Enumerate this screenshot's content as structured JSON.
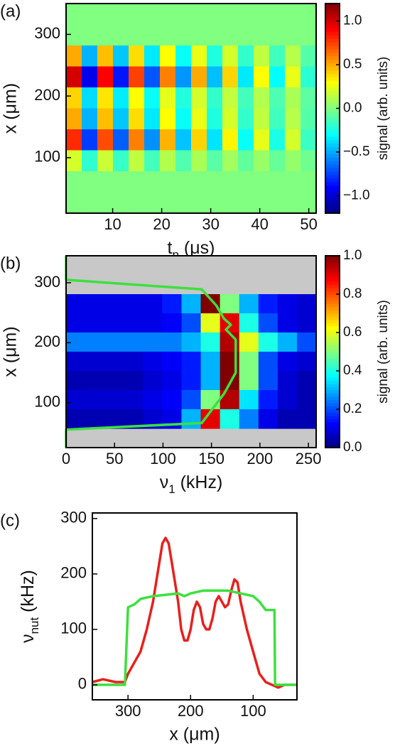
{
  "chart_data": [
    {
      "type": "heatmap",
      "panel_label": "(a)",
      "xlabel": [
        "t",
        "p",
        " (μs)"
      ],
      "ylabel": "x (μm)",
      "xlim": [
        0.5,
        51.5
      ],
      "xticks": [
        10,
        20,
        30,
        40,
        50
      ],
      "ylim": [
        10,
        350
      ],
      "yticks": [
        100,
        200,
        300
      ],
      "colormap": "jet",
      "clim": [
        -1.2,
        1.2
      ],
      "cticks": [
        {
          "value": -1,
          "label": "−1.0"
        },
        {
          "value": -0.5,
          "label": "−0.5"
        },
        {
          "value": 0,
          "label": "0.0"
        },
        {
          "value": 0.5,
          "label": "0.5"
        },
        {
          "value": 1,
          "label": "1.0"
        }
      ],
      "colorbar_label": "signal (arb. units)",
      "z": [
        [
          0,
          0,
          0,
          0,
          0,
          0,
          0,
          0,
          0,
          0,
          0,
          0,
          0,
          0,
          0,
          0
        ],
        [
          0,
          0,
          0,
          0,
          0,
          0,
          0,
          0,
          0,
          0,
          0,
          0,
          0,
          0,
          0,
          0
        ],
        [
          0.5,
          -0.48,
          0.45,
          -0.43,
          0.38,
          -0.35,
          0.3,
          -0.28,
          0.25,
          -0.23,
          0.2,
          -0.18,
          0.15,
          -0.15,
          0.13,
          -0.1
        ],
        [
          1,
          -0.95,
          0.9,
          -0.85,
          0.75,
          -0.7,
          0.6,
          -0.55,
          0.5,
          -0.45,
          0.4,
          -0.35,
          0.3,
          -0.3,
          0.25,
          -0.2
        ],
        [
          0.4,
          -0.38,
          0.36,
          -0.34,
          0.3,
          -0.28,
          0.24,
          -0.22,
          0.2,
          -0.18,
          0.16,
          -0.14,
          0.12,
          -0.12,
          0.1,
          -0.08
        ],
        [
          0.5,
          -0.48,
          0.45,
          -0.43,
          0.38,
          -0.35,
          0.3,
          -0.28,
          0.25,
          -0.23,
          0.2,
          -0.18,
          0.15,
          -0.15,
          0.13,
          -0.1
        ],
        [
          0.8,
          -0.76,
          0.72,
          -0.68,
          0.6,
          -0.56,
          0.48,
          -0.44,
          0.4,
          -0.36,
          0.32,
          -0.28,
          0.24,
          -0.24,
          0.2,
          -0.16
        ],
        [
          0.2,
          -0.19,
          0.18,
          -0.17,
          0.15,
          -0.14,
          0.12,
          -0.11,
          0.1,
          -0.09,
          0.08,
          -0.07,
          0.06,
          -0.06,
          0.05,
          -0.04
        ],
        [
          0,
          0,
          0,
          0,
          0,
          0,
          0,
          0,
          0,
          0,
          0,
          0,
          0,
          0,
          0,
          0
        ],
        [
          0,
          0,
          0,
          0,
          0,
          0,
          0,
          0,
          0,
          0,
          0,
          0,
          0,
          0,
          0,
          0
        ]
      ]
    },
    {
      "type": "heatmap",
      "panel_label": "(b)",
      "xlabel": [
        "ν",
        "1",
        " (kHz)"
      ],
      "ylabel": "x (μm)",
      "xlim": [
        0,
        258
      ],
      "xticks": [
        0,
        50,
        100,
        150,
        200,
        250
      ],
      "ylim": [
        25,
        345
      ],
      "yticks": [
        100,
        200,
        300
      ],
      "colormap": "jet",
      "clim": [
        0,
        1
      ],
      "nan_color": "#c8c8c8",
      "cticks": [
        {
          "value": 0,
          "label": "0.0"
        },
        {
          "value": 0.2,
          "label": "0.2"
        },
        {
          "value": 0.4,
          "label": "0.4"
        },
        {
          "value": 0.6,
          "label": "0.6"
        },
        {
          "value": 0.8,
          "label": "0.8"
        },
        {
          "value": 1,
          "label": "1.0"
        }
      ],
      "colorbar_label": "signal (arb. units)",
      "z": [
        [
          null,
          null,
          null,
          null,
          null,
          null,
          null,
          null,
          null,
          null,
          null,
          null,
          null
        ],
        [
          null,
          null,
          null,
          null,
          null,
          null,
          null,
          null,
          null,
          null,
          null,
          null,
          null
        ],
        [
          0.1,
          0.1,
          0.1,
          0.1,
          0.1,
          0.15,
          0.3,
          1.0,
          0.5,
          0.3,
          0.15,
          0.1,
          0.08
        ],
        [
          0.1,
          0.1,
          0.1,
          0.1,
          0.1,
          0.12,
          0.2,
          0.6,
          0.9,
          0.4,
          0.2,
          0.1,
          0.08
        ],
        [
          0.25,
          0.25,
          0.25,
          0.25,
          0.25,
          0.25,
          0.3,
          0.4,
          0.95,
          0.6,
          0.4,
          0.3,
          0.2
        ],
        [
          0.08,
          0.08,
          0.08,
          0.08,
          0.1,
          0.12,
          0.15,
          0.3,
          1.0,
          0.5,
          0.2,
          0.1,
          0.08
        ],
        [
          0.05,
          0.05,
          0.05,
          0.05,
          0.08,
          0.1,
          0.15,
          0.3,
          1.0,
          0.5,
          0.2,
          0.08,
          0.05
        ],
        [
          0.08,
          0.08,
          0.08,
          0.08,
          0.1,
          0.12,
          0.2,
          0.5,
          0.95,
          0.35,
          0.15,
          0.08,
          0.05
        ],
        [
          0.05,
          0.05,
          0.05,
          0.05,
          0.08,
          0.1,
          0.3,
          0.9,
          0.4,
          0.25,
          0.1,
          0.05,
          0.05
        ],
        [
          null,
          null,
          null,
          null,
          null,
          null,
          null,
          null,
          null,
          null,
          null,
          null,
          null
        ]
      ],
      "series": [
        {
          "color": "#3de03d",
          "x": [
            0,
            0,
            140,
            155,
            163,
            170,
            165,
            175,
            175,
            163,
            140,
            0,
            0
          ],
          "y": [
            345,
            305,
            289,
            262,
            240,
            230,
            222,
            205,
            150,
            115,
            66,
            55,
            25
          ]
        }
      ]
    },
    {
      "type": "line",
      "panel_label": "(c)",
      "xlabel": "x (μm)",
      "ylabel": [
        "ν",
        "nut",
        " (kHz)"
      ],
      "xlim": [
        357,
        30
      ],
      "ylim": [
        -27,
        310
      ],
      "xticks": [
        300,
        200,
        100
      ],
      "yticks": [
        0,
        100,
        200,
        300
      ],
      "series": [
        {
          "color": "#e8201c",
          "x": [
            357,
            340,
            320,
            305,
            300,
            290,
            280,
            270,
            260,
            250,
            245,
            240,
            235,
            230,
            220,
            215,
            210,
            205,
            200,
            195,
            190,
            185,
            180,
            175,
            170,
            165,
            160,
            155,
            150,
            145,
            140,
            135,
            130,
            125,
            120,
            110,
            100,
            90,
            80,
            70,
            60,
            50,
            30
          ],
          "y": [
            5,
            10,
            5,
            5,
            20,
            40,
            60,
            100,
            150,
            220,
            255,
            265,
            255,
            220,
            150,
            100,
            80,
            80,
            100,
            135,
            150,
            140,
            110,
            100,
            100,
            120,
            150,
            160,
            150,
            140,
            145,
            170,
            190,
            185,
            150,
            100,
            60,
            20,
            5,
            0,
            -5,
            0,
            0
          ]
        },
        {
          "color": "#3de03d",
          "x": [
            357,
            305,
            300,
            290,
            280,
            260,
            220,
            210,
            200,
            180,
            140,
            120,
            100,
            90,
            80,
            66,
            65,
            30
          ],
          "y": [
            0,
            0,
            140,
            145,
            155,
            160,
            165,
            160,
            165,
            170,
            170,
            165,
            160,
            150,
            135,
            135,
            0,
            0
          ]
        }
      ]
    }
  ]
}
